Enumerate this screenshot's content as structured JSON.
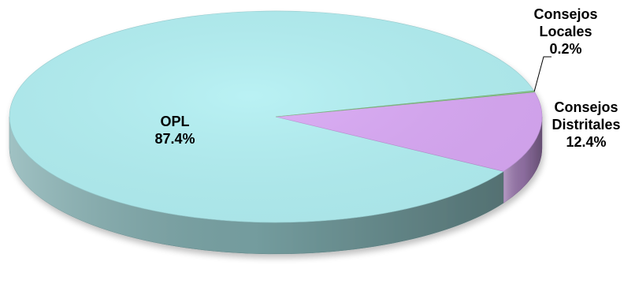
{
  "chart_data": {
    "type": "pie",
    "title": "",
    "slices": [
      {
        "name": "OPL",
        "label_lines": [
          "OPL",
          "87.4%"
        ],
        "value": 87.4,
        "color": "#B2F0F3"
      },
      {
        "name": "Consejos Distritales",
        "label_lines": [
          "Consejos",
          "Distritales",
          "12.4%"
        ],
        "value": 12.4,
        "color": "#D9A8F5"
      },
      {
        "name": "Consejos Locales",
        "label_lines": [
          "Consejos",
          "Locales",
          "0.2%"
        ],
        "value": 0.2,
        "color": "#8ED08E"
      }
    ],
    "legend": "none",
    "style": "3d"
  }
}
